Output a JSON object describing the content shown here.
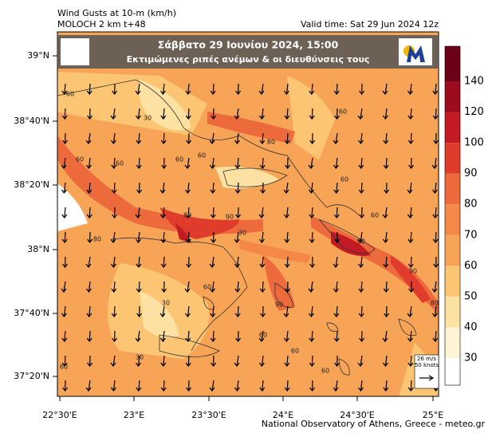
{
  "header": {
    "title": "Wind Gusts at 10-m (km/h)",
    "model": "MOLOCH 2 km t+48",
    "valid_time": "Valid time: Sat 29 Jun 2024 12z"
  },
  "banner": {
    "date": "Σάββατο  29 Ιουνίου 2024, 15:00",
    "subtitle": "Εκτιμώμενες ριπές ανέμων & οι διευθύνσεις τους"
  },
  "map": {
    "lat_labels": [
      "39°N",
      "38°40'N",
      "38°20'N",
      "38°N",
      "37°40'N",
      "37°20'N"
    ],
    "lon_labels": [
      "22°30'E",
      "23°E",
      "23°30'E",
      "24°E",
      "24°30'E",
      "25°E"
    ],
    "contour_labels": [
      60,
      60,
      30,
      60,
      60,
      80,
      60,
      60,
      30,
      80,
      90,
      90,
      90,
      80,
      60,
      60,
      30,
      80,
      60,
      90,
      60,
      30,
      60,
      60,
      60
    ]
  },
  "colorbar": {
    "levels": [
      30,
      40,
      50,
      60,
      70,
      80,
      90,
      100,
      120,
      140
    ],
    "colors": [
      "#ffffff",
      "#fff5d6",
      "#fde1a2",
      "#fbc574",
      "#f8a457",
      "#f48848",
      "#ed6a3c",
      "#e03c2c",
      "#c41a24",
      "#9c0c1e",
      "#6c0016"
    ]
  },
  "wind_key": {
    "speed": "26 m/s",
    "knots": "50 knots"
  },
  "footer": "National Observatory of Athens, Greece - meteo.gr"
}
